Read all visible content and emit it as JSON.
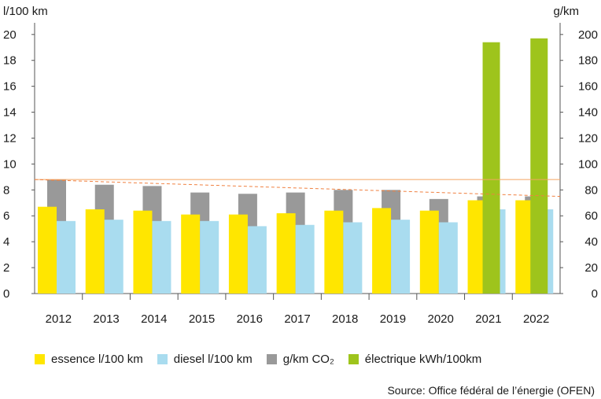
{
  "chart_data": {
    "type": "bar",
    "left_axis_unit": "l/100 km",
    "right_axis_unit": "g/km",
    "categories": [
      "2012",
      "2013",
      "2014",
      "2015",
      "2016",
      "2017",
      "2018",
      "2019",
      "2020",
      "2021",
      "2022"
    ],
    "ylim_left": [
      0,
      20
    ],
    "ylim_right": [
      0,
      200
    ],
    "left_ticks": [
      "0",
      "2",
      "4",
      "6",
      "8",
      "10",
      "12",
      "14",
      "16",
      "18",
      "20"
    ],
    "right_ticks": [
      "0",
      "20",
      "40",
      "60",
      "80",
      "100",
      "120",
      "140",
      "160",
      "180",
      "200"
    ],
    "series": [
      {
        "name": "essence l/100 km",
        "axis": "left",
        "color": "#ffe600",
        "values": [
          6.7,
          6.5,
          6.4,
          6.1,
          6.1,
          6.2,
          6.4,
          6.6,
          6.4,
          7.2,
          7.2
        ]
      },
      {
        "name": "diesel l/100 km",
        "axis": "left",
        "color": "#a9dcef",
        "values": [
          5.6,
          5.7,
          5.6,
          5.6,
          5.2,
          5.3,
          5.5,
          5.7,
          5.5,
          6.5,
          6.5
        ]
      },
      {
        "name": "g/km CO₂",
        "axis": "right",
        "color": "#999999",
        "values": [
          88,
          84,
          83,
          78,
          77,
          78,
          80,
          80,
          73,
          75,
          75
        ]
      },
      {
        "name": "électrique kWh/100km",
        "axis": "left",
        "color": "#9ec41c",
        "values": [
          null,
          null,
          null,
          null,
          null,
          null,
          null,
          null,
          null,
          19.4,
          19.7
        ]
      }
    ],
    "reference_lines": [
      {
        "style": "solid",
        "color": "#f4a460",
        "axis": "right",
        "from": 88,
        "to": 88
      },
      {
        "style": "dashed",
        "color": "#f08040",
        "axis": "right",
        "from": 88,
        "to": 75
      }
    ],
    "grid": false,
    "legend_position": "bottom"
  },
  "legend": [
    {
      "label": "essence l/100 km",
      "color": "#ffe600"
    },
    {
      "label": "diesel l/100 km",
      "color": "#a9dcef"
    },
    {
      "label": "g/km CO₂",
      "color": "#999999"
    },
    {
      "label": "électrique kWh/100km",
      "color": "#9ec41c"
    }
  ],
  "source": "Source: Office fédéral de l’énergie (OFEN)"
}
